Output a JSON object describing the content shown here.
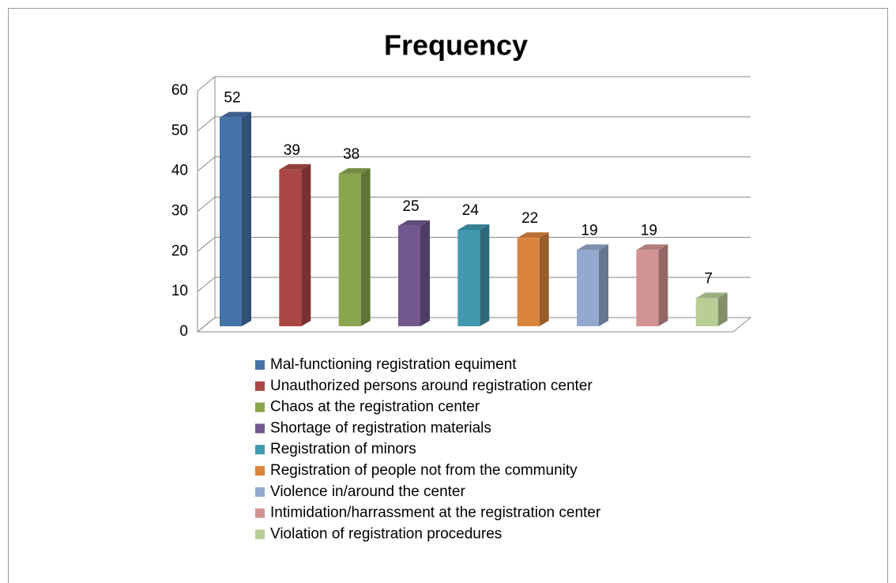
{
  "chart_data": {
    "type": "bar3d",
    "title": "Frequency",
    "categories": [
      "Mal-functioning registration equiment",
      "Unauthorized persons around registration center",
      "Chaos at the registration center",
      "Shortage of registration materials",
      "Registration of minors",
      "Registration of people not from the community",
      "Violence in/around the center",
      "Intimidation/harrassment at the registration center",
      "Violation of registration procedures"
    ],
    "values": [
      52,
      39,
      38,
      25,
      24,
      22,
      19,
      19,
      7
    ],
    "colors": [
      "#4572a7",
      "#aa4643",
      "#89a54e",
      "#71588f",
      "#4198af",
      "#db843d",
      "#93a9cf",
      "#d19392",
      "#b9cd96"
    ],
    "ylim": [
      0,
      60
    ],
    "yticks": [
      0,
      10,
      20,
      30,
      40,
      50,
      60
    ],
    "grid": true,
    "legend": "bottom"
  }
}
